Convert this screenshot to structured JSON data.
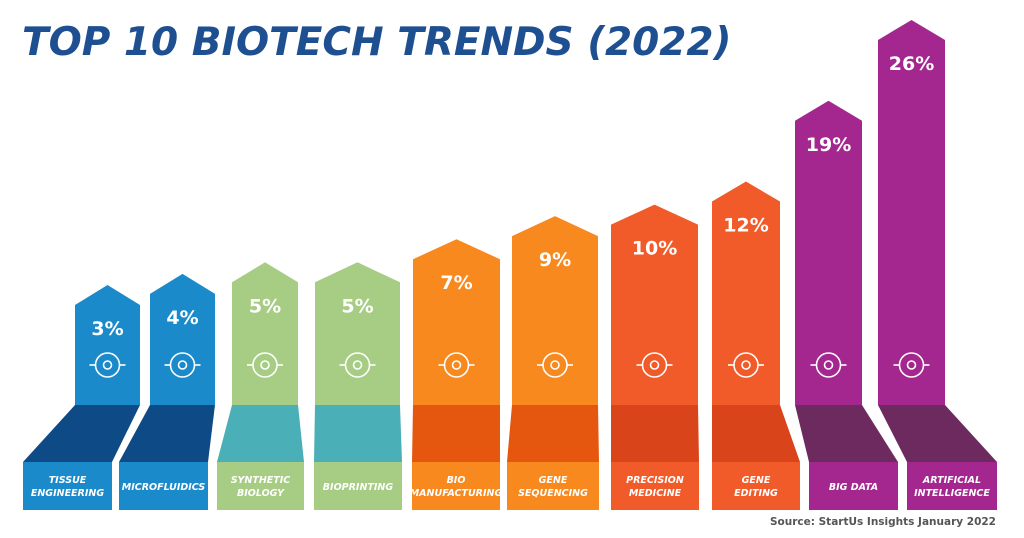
{
  "chart_data": {
    "type": "bar",
    "title": "TOP 10 BIOTECH TRENDS (2022)",
    "categories": [
      "TISSUE ENGINEERING",
      "MICROFLUIDICS",
      "SYNTHETIC BIOLOGY",
      "BIOPRINTING",
      "BIO MANUFACTURING",
      "GENE SEQUENCING",
      "PRECISION MEDICINE",
      "GENE EDITING",
      "BIG DATA",
      "ARTIFICIAL INTELLIGENCE"
    ],
    "category_lines": [
      [
        "TISSUE",
        "ENGINEERING"
      ],
      [
        "MICROFLUIDICS"
      ],
      [
        "SYNTHETIC",
        "BIOLOGY"
      ],
      [
        "BIOPRINTING"
      ],
      [
        "BIO",
        "MANUFACTURING"
      ],
      [
        "GENE",
        "SEQUENCING"
      ],
      [
        "PRECISION",
        "MEDICINE"
      ],
      [
        "GENE",
        "EDITING"
      ],
      [
        "BIG DATA"
      ],
      [
        "ARTIFICIAL",
        "INTELLIGENCE"
      ]
    ],
    "values": [
      3,
      4,
      5,
      5,
      7,
      9,
      10,
      12,
      19,
      26
    ],
    "data_labels": [
      "3%",
      "4%",
      "5%",
      "5%",
      "7%",
      "9%",
      "10%",
      "12%",
      "19%",
      "26%"
    ],
    "unit": "%",
    "icons": [
      "tissue-molecule-icon",
      "microchip-icon",
      "synthetic-biology-hexagon-icon",
      "3d-printer-icon",
      "bio-gear-icon",
      "dna-sequencing-icon",
      "precision-target-syringe-icon",
      "dna-helix-icon",
      "big-data-gauge-icon",
      "ai-head-circuit-icon"
    ],
    "colors": {
      "column": [
        "#1b8acb",
        "#1b8acb",
        "#a6cd83",
        "#a6cd83",
        "#f7891f",
        "#f7891f",
        "#f15a29",
        "#f15a29",
        "#a4278f",
        "#a4278f"
      ],
      "band": [
        "#0e4a85",
        "#0e4a85",
        "#4aafb6",
        "#4aafb6",
        "#e5560f",
        "#e5560f",
        "#d9441b",
        "#d9441b",
        "#6c2a5e",
        "#6c2a5e"
      ],
      "title": "#1d4f91"
    },
    "source": "Source: StartUs Insights January 2022"
  }
}
